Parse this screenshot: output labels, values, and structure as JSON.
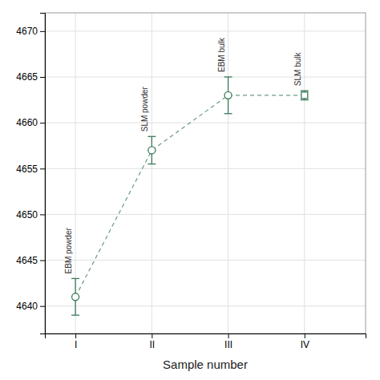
{
  "chart_data": {
    "type": "line",
    "x": [
      1,
      2,
      3,
      4
    ],
    "values": [
      4641.0,
      4657.0,
      4663.0,
      4663.0
    ],
    "errors": [
      2.0,
      1.5,
      2.0,
      0.5
    ],
    "markers": [
      "circle",
      "circle",
      "circle",
      "square"
    ],
    "annotations": [
      "EBM powder",
      "SLM powder",
      "EBM bulk",
      "SLM bulk"
    ],
    "color": "#3a7a5a",
    "line_style": "dashed",
    "xlabel": "Sample number",
    "xlim": [
      0.6,
      4.8
    ],
    "xticks": [
      {
        "value": 1,
        "label": "I"
      },
      {
        "value": 2,
        "label": "II"
      },
      {
        "value": 3,
        "label": "III"
      },
      {
        "value": 4,
        "label": "IV"
      }
    ],
    "ylim": [
      4637,
      4672
    ],
    "yticks": [
      4640,
      4645,
      4650,
      4655,
      4660,
      4665,
      4670
    ],
    "grid": true
  }
}
